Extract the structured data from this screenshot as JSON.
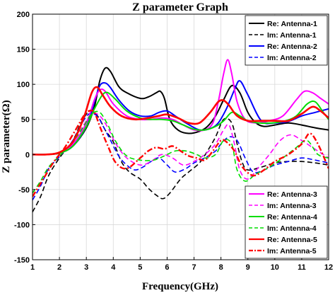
{
  "chart_data": {
    "type": "line",
    "title": "Z parameter Graph",
    "xlabel": "Frequency(GHz)",
    "ylabel": "Z parameter(Ω)",
    "xlim": [
      1,
      12
    ],
    "ylim": [
      -150,
      200
    ],
    "xticks": [
      1,
      2,
      3,
      4,
      5,
      6,
      7,
      8,
      9,
      10,
      11,
      12
    ],
    "yticks": [
      -150,
      -100,
      -50,
      0,
      50,
      100,
      150,
      200
    ],
    "grid": true,
    "legends": [
      {
        "placement": "top-right",
        "entries": [
          0,
          1,
          2,
          3
        ]
      },
      {
        "placement": "bottom-right",
        "entries": [
          4,
          5,
          6,
          7,
          8,
          9
        ]
      }
    ],
    "series": [
      {
        "name": "Re: Antenna-1",
        "color": "#000000",
        "style": "solid",
        "width": 2,
        "x": [
          1,
          1.5,
          2,
          2.5,
          3,
          3.3,
          3.5,
          3.7,
          3.9,
          4.2,
          4.5,
          5,
          5.3,
          5.6,
          5.75,
          5.9,
          6.1,
          6.4,
          6.8,
          7.2,
          7.5,
          7.8,
          8.1,
          8.4,
          8.7,
          9,
          9.3,
          9.6,
          10,
          10.5,
          11,
          11.5,
          12
        ],
        "y": [
          0,
          0,
          2,
          12,
          38,
          68,
          105,
          123,
          118,
          97,
          88,
          80,
          82,
          88,
          90,
          80,
          50,
          35,
          30,
          33,
          40,
          55,
          78,
          98,
          88,
          60,
          45,
          40,
          42,
          45,
          42,
          38,
          35
        ]
      },
      {
        "name": "Im: Antenna-1",
        "color": "#000000",
        "style": "dash",
        "width": 1.6,
        "x": [
          1,
          1.3,
          1.6,
          2,
          2.5,
          2.8,
          3.1,
          3.3,
          3.5,
          3.7,
          4,
          4.3,
          4.6,
          5,
          5.3,
          5.6,
          5.85,
          6.1,
          6.5,
          6.8,
          7.2,
          7.5,
          7.8,
          8.1,
          8.4,
          8.6,
          8.8,
          9,
          9.5,
          10,
          10.5,
          11,
          11.5,
          12
        ],
        "y": [
          -82,
          -60,
          -30,
          -5,
          20,
          45,
          62,
          60,
          50,
          35,
          18,
          -10,
          -25,
          -35,
          -48,
          -58,
          -63,
          -55,
          -35,
          -25,
          -12,
          5,
          25,
          50,
          45,
          15,
          -12,
          -22,
          -18,
          -12,
          -10,
          -10,
          -12,
          -15
        ]
      },
      {
        "name": "Re: Antenna-2",
        "color": "#0000ff",
        "style": "solid",
        "width": 2,
        "x": [
          1,
          1.5,
          2,
          2.5,
          3,
          3.3,
          3.5,
          3.7,
          3.9,
          4.2,
          4.6,
          5,
          5.4,
          5.7,
          6,
          6.3,
          6.7,
          7.2,
          7.6,
          7.9,
          8.2,
          8.5,
          8.7,
          9,
          9.5,
          10,
          10.5,
          11,
          11.5,
          12
        ],
        "y": [
          0,
          0,
          2,
          12,
          40,
          75,
          98,
          102,
          95,
          78,
          62,
          55,
          55,
          60,
          62,
          55,
          45,
          35,
          37,
          45,
          65,
          92,
          105,
          85,
          48,
          45,
          47,
          55,
          60,
          65
        ]
      },
      {
        "name": "Im: Antenna-2",
        "color": "#0000ff",
        "style": "dash",
        "width": 1.6,
        "x": [
          1,
          1.3,
          1.6,
          2,
          2.5,
          2.8,
          3.1,
          3.4,
          3.6,
          3.9,
          4.2,
          4.5,
          4.8,
          5.1,
          5.4,
          5.7,
          6,
          6.3,
          6.7,
          7,
          7.4,
          7.8,
          8,
          8.3,
          8.6,
          8.9,
          9.2,
          9.6,
          10,
          10.5,
          11,
          11.5,
          12
        ],
        "y": [
          -65,
          -45,
          -20,
          -3,
          20,
          42,
          58,
          55,
          42,
          20,
          -2,
          -15,
          -22,
          -18,
          -10,
          -5,
          -15,
          -25,
          -20,
          -12,
          -5,
          5,
          15,
          25,
          20,
          -5,
          -25,
          -22,
          -15,
          -10,
          -5,
          -8,
          -12
        ]
      },
      {
        "name": "Re: Antenna-3",
        "color": "#ff00ff",
        "style": "solid",
        "width": 2,
        "x": [
          1,
          1.5,
          2,
          2.5,
          3,
          3.3,
          3.5,
          3.7,
          4,
          4.5,
          5,
          5.4,
          5.8,
          6.2,
          6.6,
          7,
          7.4,
          7.7,
          7.9,
          8.1,
          8.25,
          8.4,
          8.6,
          8.9,
          9.3,
          9.8,
          10.3,
          10.8,
          11.1,
          11.4,
          11.7,
          12
        ],
        "y": [
          0,
          0,
          3,
          15,
          45,
          78,
          92,
          90,
          72,
          55,
          50,
          50,
          52,
          50,
          42,
          35,
          35,
          45,
          75,
          115,
          135,
          115,
          75,
          50,
          45,
          48,
          55,
          78,
          90,
          88,
          80,
          72
        ]
      },
      {
        "name": "Im: Antenna-3",
        "color": "#ff00ff",
        "style": "dash",
        "width": 1.6,
        "x": [
          1,
          1.3,
          1.6,
          2,
          2.5,
          2.9,
          3.2,
          3.5,
          3.8,
          4.1,
          4.5,
          5,
          5.4,
          5.8,
          6.2,
          6.6,
          7,
          7.4,
          7.8,
          8.1,
          8.3,
          8.5,
          8.7,
          9,
          9.4,
          9.8,
          10.2,
          10.6,
          11,
          11.4,
          11.8,
          12
        ],
        "y": [
          -55,
          -38,
          -18,
          -2,
          18,
          42,
          58,
          55,
          38,
          15,
          -5,
          -15,
          -10,
          0,
          -5,
          -15,
          -10,
          0,
          15,
          35,
          42,
          15,
          -22,
          -35,
          -18,
          0,
          20,
          28,
          20,
          10,
          0,
          -5
        ]
      },
      {
        "name": "Re: Antenna-4",
        "color": "#00dd00",
        "style": "solid",
        "width": 2,
        "x": [
          1,
          1.5,
          2,
          2.5,
          3,
          3.3,
          3.6,
          3.8,
          4.1,
          4.5,
          5,
          5.4,
          5.8,
          6.2,
          6.6,
          7,
          7.4,
          7.8,
          8.1,
          8.4,
          8.7,
          9,
          9.4,
          9.9,
          10.4,
          10.8,
          11.2,
          11.5,
          11.8,
          12
        ],
        "y": [
          0,
          0,
          2,
          12,
          40,
          65,
          85,
          88,
          78,
          62,
          52,
          50,
          50,
          48,
          42,
          36,
          35,
          40,
          48,
          60,
          55,
          48,
          45,
          45,
          48,
          55,
          72,
          75,
          60,
          50
        ]
      },
      {
        "name": "Im: Antenna-4",
        "color": "#00dd00",
        "style": "dash",
        "width": 1.6,
        "x": [
          1,
          1.3,
          1.6,
          2,
          2.5,
          2.9,
          3.2,
          3.5,
          3.8,
          4.1,
          4.5,
          5,
          5.5,
          5.9,
          6.3,
          6.7,
          7.1,
          7.4,
          7.8,
          8.1,
          8.4,
          8.6,
          8.9,
          9.3,
          9.8,
          10.3,
          10.8,
          11.2,
          11.6,
          12
        ],
        "y": [
          -55,
          -38,
          -18,
          -2,
          18,
          40,
          58,
          60,
          42,
          18,
          -2,
          -8,
          -8,
          -2,
          5,
          5,
          0,
          -5,
          0,
          20,
          15,
          -22,
          -38,
          -28,
          -18,
          -5,
          10,
          20,
          0,
          -5
        ]
      },
      {
        "name": "Re: Antenna-5",
        "color": "#ff0000",
        "style": "solid",
        "width": 2.6,
        "x": [
          1,
          1.5,
          2,
          2.5,
          2.9,
          3.2,
          3.4,
          3.6,
          3.9,
          4.3,
          4.8,
          5.3,
          5.7,
          6,
          6.4,
          6.8,
          7.2,
          7.6,
          7.9,
          8.1,
          8.3,
          8.6,
          9,
          9.5,
          10,
          10.5,
          11,
          11.4,
          11.7,
          12
        ],
        "y": [
          0,
          0,
          3,
          18,
          52,
          88,
          96,
          85,
          68,
          55,
          50,
          52,
          55,
          57,
          52,
          45,
          45,
          60,
          75,
          77,
          70,
          55,
          48,
          48,
          48,
          48,
          58,
          68,
          62,
          52
        ]
      },
      {
        "name": "Im: Antenna-5",
        "color": "#ff0000",
        "style": "dashdot",
        "width": 2.4,
        "x": [
          1,
          1.4,
          1.8,
          2.2,
          2.6,
          2.9,
          3.1,
          3.3,
          3.5,
          3.8,
          4.1,
          4.5,
          5,
          5.3,
          5.6,
          5.9,
          6.2,
          6.5,
          6.8,
          7.1,
          7.4,
          7.7,
          8,
          8.2,
          8.5,
          8.8,
          9.2,
          9.6,
          10,
          10.5,
          11,
          11.3,
          11.6,
          12
        ],
        "y": [
          -60,
          -35,
          -10,
          10,
          35,
          55,
          62,
          60,
          40,
          12,
          -12,
          -20,
          -5,
          5,
          10,
          8,
          12,
          5,
          -2,
          -5,
          -8,
          5,
          20,
          18,
          5,
          -18,
          -30,
          -22,
          -10,
          0,
          15,
          30,
          15,
          -20
        ]
      }
    ]
  }
}
